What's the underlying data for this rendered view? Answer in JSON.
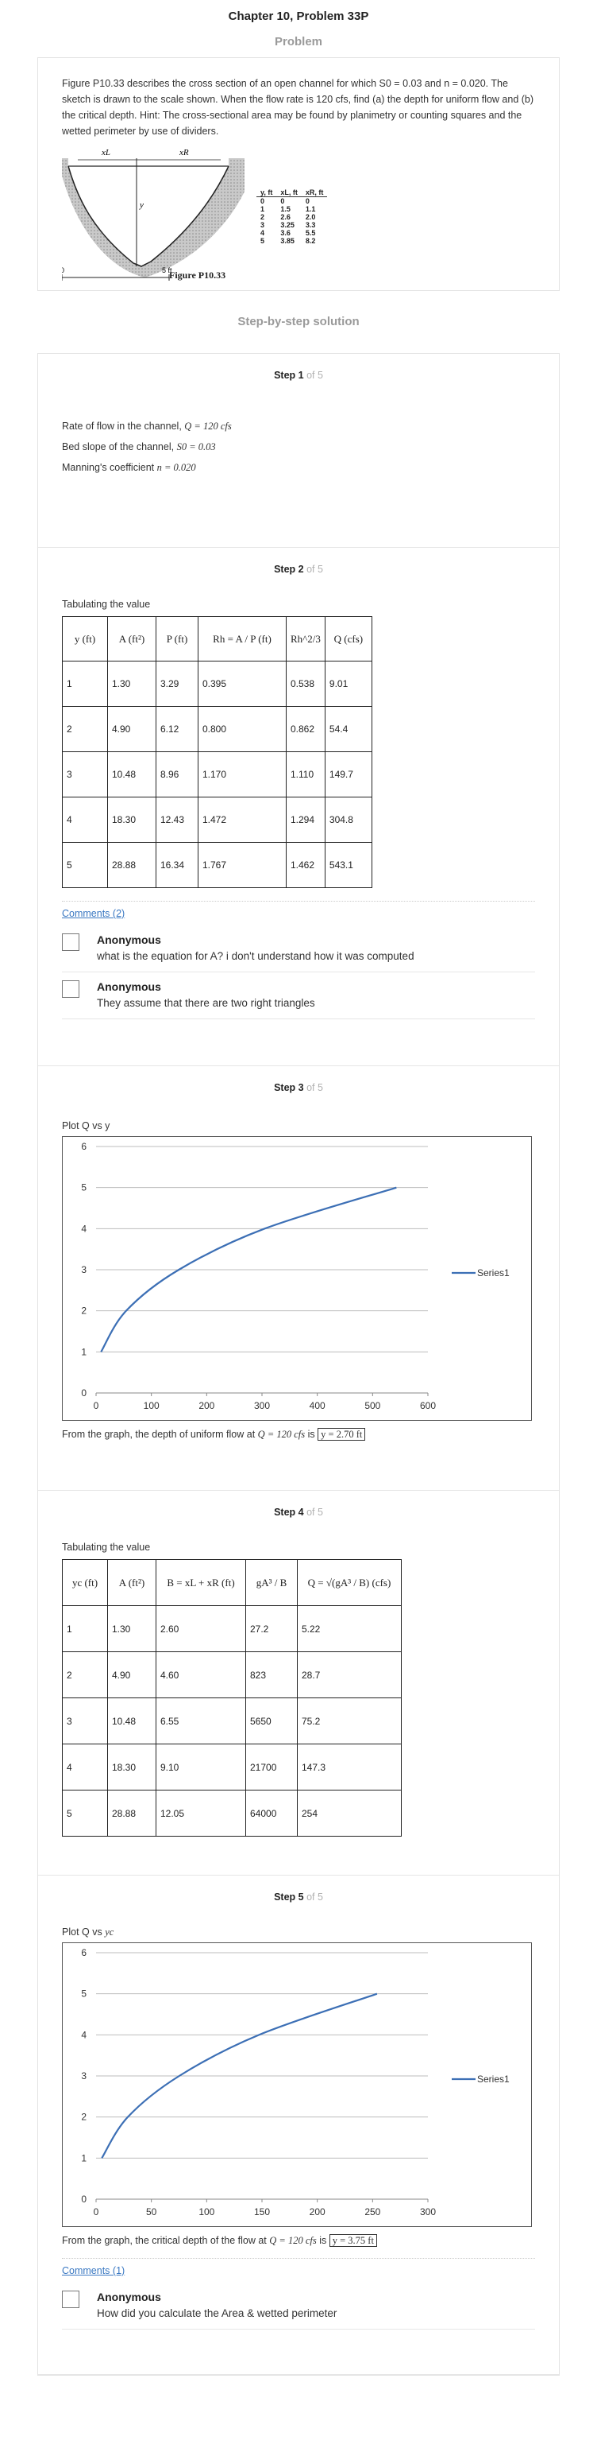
{
  "page": {
    "title": "Chapter 10, Problem 33P"
  },
  "problem": {
    "heading": "Problem",
    "text": "Figure P10.33 describes the cross section of an open channel for which S0 = 0.03 and n = 0.020. The sketch is drawn to the scale shown. When the flow rate is 120 cfs, find (a) the depth for uniform flow and (b) the critical depth. Hint: The cross-sectional area may be found by planimetry or counting squares and the wetted perimeter by use of dividers.",
    "figure": {
      "caption": "Figure P10.33",
      "label_xl": "xL",
      "label_xr": "xR",
      "label_y": "y",
      "scale_zero": "0",
      "scale_five": "5 ft",
      "table_headers": [
        "y, ft",
        "xL, ft",
        "xR, ft"
      ],
      "table_rows": [
        [
          "0",
          "0",
          "0"
        ],
        [
          "1",
          "1.5",
          "1.1"
        ],
        [
          "2",
          "2.6",
          "2.0"
        ],
        [
          "3",
          "3.25",
          "3.3"
        ],
        [
          "4",
          "3.6",
          "5.5"
        ],
        [
          "5",
          "3.85",
          "8.2"
        ]
      ]
    }
  },
  "solution": {
    "heading": "Step-by-step solution"
  },
  "step1": {
    "label": "Step 1",
    "of": "of 5",
    "line1_text": "Rate of flow in the channel,",
    "line1_math": "Q = 120 cfs",
    "line2_text": "Bed slope of the channel,",
    "line2_math": "S0 = 0.03",
    "line3_text": "Manning's coefficient",
    "line3_math": "n = 0.020"
  },
  "step2": {
    "label": "Step 2",
    "of": "of 5",
    "intro": "Tabulating the value",
    "headers": [
      "y (ft)",
      "A (ft²)",
      "P (ft)",
      "Rh = A / P (ft)",
      "Rh^2/3",
      "Q (cfs)"
    ],
    "rows": [
      [
        "1",
        "1.30",
        "3.29",
        "0.395",
        "0.538",
        "9.01"
      ],
      [
        "2",
        "4.90",
        "6.12",
        "0.800",
        "0.862",
        "54.4"
      ],
      [
        "3",
        "10.48",
        "8.96",
        "1.170",
        "1.110",
        "149.7"
      ],
      [
        "4",
        "18.30",
        "12.43",
        "1.472",
        "1.294",
        "304.8"
      ],
      [
        "5",
        "28.88",
        "16.34",
        "1.767",
        "1.462",
        "543.1"
      ]
    ],
    "comments_link": "Comments (2)",
    "comments": [
      {
        "author": "Anonymous",
        "text": "what is the equation for A? i don't understand how it was computed"
      },
      {
        "author": "Anonymous",
        "text": "They assume that there are two right triangles"
      }
    ]
  },
  "step3": {
    "label": "Step 3",
    "of": "of 5",
    "intro": "Plot Q vs y",
    "conclusion_text": "From the graph, the depth of uniform flow at",
    "conclusion_math": "Q = 120 cfs",
    "conclusion_is": "is",
    "conclusion_answer": "y = 2.70 ft"
  },
  "step4": {
    "label": "Step 4",
    "of": "of 5",
    "intro": "Tabulating the value",
    "headers": [
      "yc (ft)",
      "A (ft²)",
      "B = xL + xR (ft)",
      "gA³ / B",
      "Q = √(gA³ / B) (cfs)"
    ],
    "rows": [
      [
        "1",
        "1.30",
        "2.60",
        "27.2",
        "5.22"
      ],
      [
        "2",
        "4.90",
        "4.60",
        "823",
        "28.7"
      ],
      [
        "3",
        "10.48",
        "6.55",
        "5650",
        "75.2"
      ],
      [
        "4",
        "18.30",
        "9.10",
        "21700",
        "147.3"
      ],
      [
        "5",
        "28.88",
        "12.05",
        "64000",
        "254"
      ]
    ]
  },
  "step5": {
    "label": "Step 5",
    "of": "of 5",
    "intro": "Plot Q vs",
    "intro_math": "yc",
    "conclusion_text": "From the graph, the critical depth of the flow at",
    "conclusion_math": "Q = 120 cfs",
    "conclusion_is": "is",
    "conclusion_answer": "y = 3.75 ft",
    "comments_link": "Comments (1)",
    "comments": [
      {
        "author": "Anonymous",
        "text": "How did you calculate the Area & wetted perimeter"
      }
    ]
  },
  "chart_data": [
    {
      "type": "line",
      "title": "",
      "series": [
        {
          "name": "Series1",
          "x": [
            9.01,
            54.4,
            149.7,
            304.8,
            543.1
          ],
          "y": [
            1,
            2,
            3,
            4,
            5
          ]
        }
      ],
      "xlim": [
        0,
        600
      ],
      "ylim": [
        0,
        6
      ],
      "xticks": [
        "0",
        "100",
        "200",
        "300",
        "400",
        "500",
        "600"
      ],
      "yticks": [
        "0",
        "1",
        "2",
        "3",
        "4",
        "5",
        "6"
      ],
      "grid": "horizontal",
      "legend": "right",
      "color": "#3c6fb5"
    },
    {
      "type": "line",
      "title": "",
      "series": [
        {
          "name": "Series1",
          "x": [
            5.22,
            28.7,
            75.2,
            147.3,
            254
          ],
          "y": [
            1,
            2,
            3,
            4,
            5
          ]
        }
      ],
      "xlim": [
        0,
        300
      ],
      "ylim": [
        0,
        6
      ],
      "xticks": [
        "0",
        "50",
        "100",
        "150",
        "200",
        "250",
        "300"
      ],
      "yticks": [
        "0",
        "1",
        "2",
        "3",
        "4",
        "5",
        "6"
      ],
      "grid": "horizontal",
      "legend": "right",
      "color": "#3c6fb5"
    }
  ]
}
